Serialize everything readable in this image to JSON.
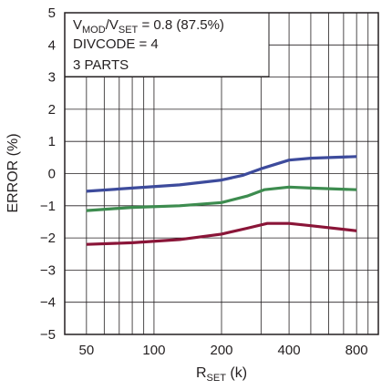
{
  "chart_data": {
    "type": "line",
    "xlabel": {
      "main": "R",
      "sub": "SET",
      "suffix": " (k)"
    },
    "ylabel": "ERROR (%)",
    "xscale": "log",
    "xlim": [
      40,
      1000
    ],
    "ylim": [
      -5,
      5
    ],
    "yticks": [
      5,
      4,
      3,
      2,
      1,
      0,
      -1,
      -2,
      -3,
      -4,
      -5
    ],
    "ytick_labels": [
      "5",
      "4",
      "3",
      "2",
      "1",
      "0",
      "−1",
      "−2",
      "−3",
      "−4",
      "−5"
    ],
    "xticks": [
      50,
      100,
      200,
      400,
      800
    ],
    "xtick_labels": [
      "50",
      "100",
      "200",
      "400",
      "800"
    ],
    "grid": true,
    "annotation": {
      "line1": {
        "a": "V",
        "a_sub": "MOD",
        "b": "/V",
        "b_sub": "SET",
        "rest": " = 0.8 (87.5%)"
      },
      "line2": "DIVCODE = 4",
      "line3": "3 PARTS"
    },
    "series": [
      {
        "color": "#3d4b9c",
        "x": [
          50,
          80,
          130,
          200,
          250,
          300,
          400,
          500,
          800
        ],
        "y": [
          -0.55,
          -0.45,
          -0.35,
          -0.2,
          -0.05,
          0.15,
          0.42,
          0.48,
          0.53
        ]
      },
      {
        "color": "#3d8c4f",
        "x": [
          50,
          80,
          130,
          200,
          260,
          310,
          400,
          500,
          800
        ],
        "y": [
          -1.15,
          -1.05,
          -1.0,
          -0.9,
          -0.7,
          -0.5,
          -0.42,
          -0.45,
          -0.5
        ]
      },
      {
        "color": "#8a1538",
        "x": [
          50,
          80,
          130,
          200,
          260,
          320,
          400,
          500,
          800
        ],
        "y": [
          -2.2,
          -2.15,
          -2.05,
          -1.88,
          -1.7,
          -1.55,
          -1.55,
          -1.62,
          -1.78
        ]
      }
    ]
  }
}
